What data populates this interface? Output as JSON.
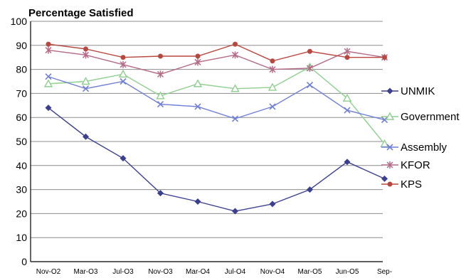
{
  "chart_data": {
    "type": "line",
    "title": "Percentage Satisfied",
    "xlabel": "",
    "ylabel": "",
    "ylim": [
      0,
      100
    ],
    "yticks": [
      0,
      10,
      20,
      30,
      40,
      50,
      60,
      70,
      80,
      90,
      100
    ],
    "grid": "horizontal",
    "legend_position": "right",
    "categories": [
      "Nov-O2",
      "Mar-O3",
      "Jul-O3",
      "Nov-O3",
      "Mar-O4",
      "Jul-O4",
      "Nov-O4",
      "Mar-O5",
      "Jun-O5",
      "Sep-"
    ],
    "series": [
      {
        "name": "UNMIK",
        "marker": "diamond",
        "color": "#3b3f8f",
        "values": [
          64,
          52,
          43,
          28.5,
          25,
          21,
          24,
          30,
          41.5,
          34.5
        ]
      },
      {
        "name": "Government",
        "marker": "triangle",
        "color": "#8fcf8f",
        "values": [
          74,
          75,
          78,
          69,
          74,
          72,
          72.5,
          81,
          68,
          49
        ]
      },
      {
        "name": "Assembly",
        "marker": "x",
        "color": "#6f7fd6",
        "values": [
          77,
          72,
          75,
          65.5,
          64.5,
          59.5,
          64.5,
          73.5,
          63,
          59
        ]
      },
      {
        "name": "KFOR",
        "marker": "star",
        "color": "#b46a86",
        "values": [
          88,
          86,
          82,
          78,
          83,
          86,
          80,
          80.5,
          87.5,
          85
        ]
      },
      {
        "name": "KPS",
        "marker": "circle",
        "color": "#b8473f",
        "values": [
          90.5,
          88.5,
          85,
          85.5,
          85.5,
          90.5,
          83.5,
          87.5,
          85,
          85
        ]
      }
    ]
  }
}
